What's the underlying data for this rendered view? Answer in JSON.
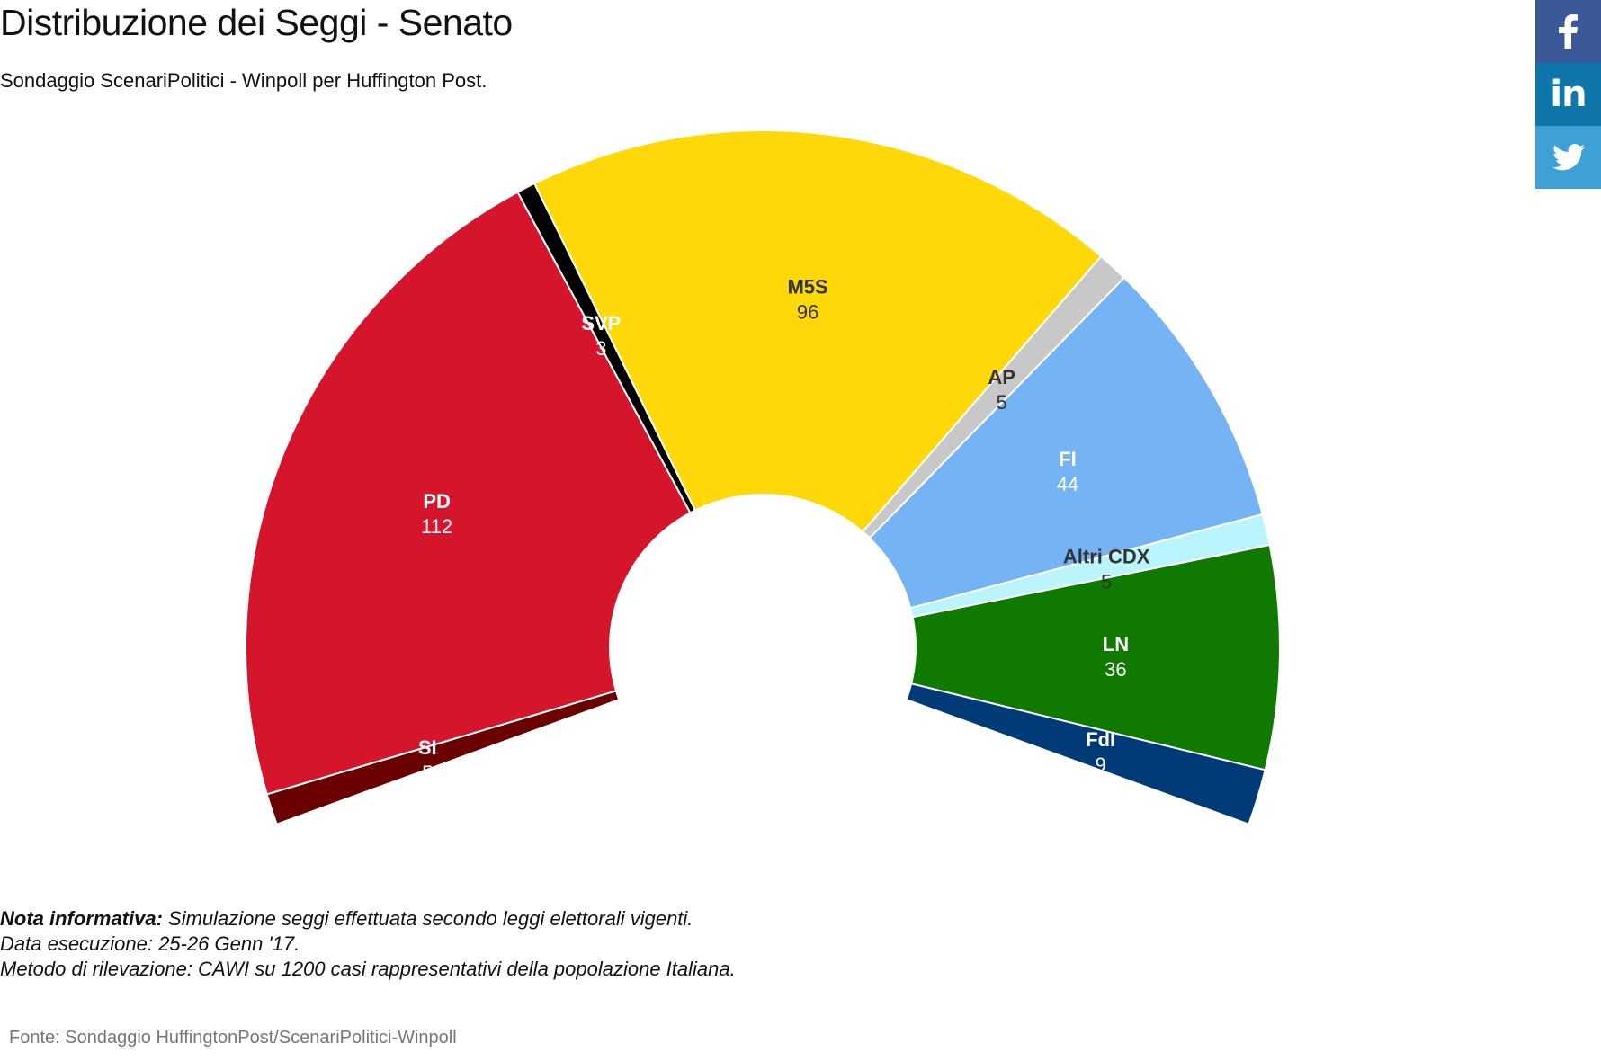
{
  "title": "Distribuzione dei Seggi - Senato",
  "subtitle": "Sondaggio ScenariPolitici - Winpoll per Huffington Post.",
  "chart_data": {
    "type": "pie",
    "subtype": "semi-donut",
    "title": "Distribuzione dei Seggi - Senato",
    "total": 315,
    "series": [
      {
        "name": "SI",
        "value": 5,
        "color": "#6b0000",
        "label_color": "#ffffff"
      },
      {
        "name": "PD",
        "value": 112,
        "color": "#d4152b",
        "label_color": "#ffffff"
      },
      {
        "name": "SVP",
        "value": 3,
        "color": "#000000",
        "label_color": "#ffffff"
      },
      {
        "name": "M5S",
        "value": 96,
        "color": "#fed808",
        "label_color": "#333333"
      },
      {
        "name": "AP",
        "value": 5,
        "color": "#c8c8c8",
        "label_color": "#333333"
      },
      {
        "name": "FI",
        "value": 44,
        "color": "#74b3f4",
        "label_color": "#ffffff"
      },
      {
        "name": "Altri CDX",
        "value": 5,
        "color": "#baf4fc",
        "label_color": "#333333"
      },
      {
        "name": "LN",
        "value": 36,
        "color": "#107a00",
        "label_color": "#ffffff"
      },
      {
        "name": "FdI",
        "value": 9,
        "color": "#003b78",
        "label_color": "#ffffff"
      }
    ]
  },
  "social": {
    "facebook_icon": "facebook-icon",
    "linkedin_icon": "linkedin-icon",
    "twitter_icon": "twitter-icon",
    "linkedin_text": "in"
  },
  "note": {
    "label": "Nota informativa:",
    "line1": "Simulazione seggi effettuata secondo leggi elettorali vigenti.",
    "line2": "Data esecuzione: 25-26 Genn '17.",
    "line3": "Metodo di rilevazione: CAWI su 1200 casi rappresentativi della popolazione Italiana."
  },
  "source": "Fonte: Sondaggio HuffingtonPost/ScenariPolitici-Winpoll"
}
